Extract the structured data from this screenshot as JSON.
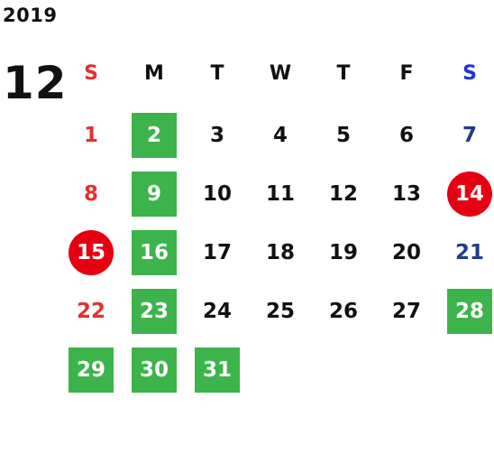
{
  "year": "2019",
  "month": "12",
  "colors": {
    "sunday": "#e53030",
    "saturday_header": "#1f35d6",
    "saturday_day": "#1f3c8c",
    "weekday": "#111111",
    "highlight_green": "#3cb44b",
    "holiday_red": "#e50012",
    "highlight_text": "#ffffff"
  },
  "weekdays": [
    "S",
    "M",
    "T",
    "W",
    "T",
    "F",
    "S"
  ],
  "weeks": [
    [
      {
        "day": "1",
        "style": "sunday"
      },
      {
        "day": "2",
        "style": "green"
      },
      {
        "day": "3",
        "style": "normal"
      },
      {
        "day": "4",
        "style": "normal"
      },
      {
        "day": "5",
        "style": "normal"
      },
      {
        "day": "6",
        "style": "normal"
      },
      {
        "day": "7",
        "style": "saturday"
      }
    ],
    [
      {
        "day": "8",
        "style": "sunday"
      },
      {
        "day": "9",
        "style": "green"
      },
      {
        "day": "10",
        "style": "normal"
      },
      {
        "day": "11",
        "style": "normal"
      },
      {
        "day": "12",
        "style": "normal"
      },
      {
        "day": "13",
        "style": "normal"
      },
      {
        "day": "14",
        "style": "red-circle"
      }
    ],
    [
      {
        "day": "15",
        "style": "red-circle"
      },
      {
        "day": "16",
        "style": "green"
      },
      {
        "day": "17",
        "style": "normal"
      },
      {
        "day": "18",
        "style": "normal"
      },
      {
        "day": "19",
        "style": "normal"
      },
      {
        "day": "20",
        "style": "normal"
      },
      {
        "day": "21",
        "style": "saturday"
      }
    ],
    [
      {
        "day": "22",
        "style": "sunday"
      },
      {
        "day": "23",
        "style": "green"
      },
      {
        "day": "24",
        "style": "normal"
      },
      {
        "day": "25",
        "style": "normal"
      },
      {
        "day": "26",
        "style": "normal"
      },
      {
        "day": "27",
        "style": "normal"
      },
      {
        "day": "28",
        "style": "green"
      }
    ],
    [
      {
        "day": "29",
        "style": "green"
      },
      {
        "day": "30",
        "style": "green"
      },
      {
        "day": "31",
        "style": "green"
      }
    ]
  ]
}
